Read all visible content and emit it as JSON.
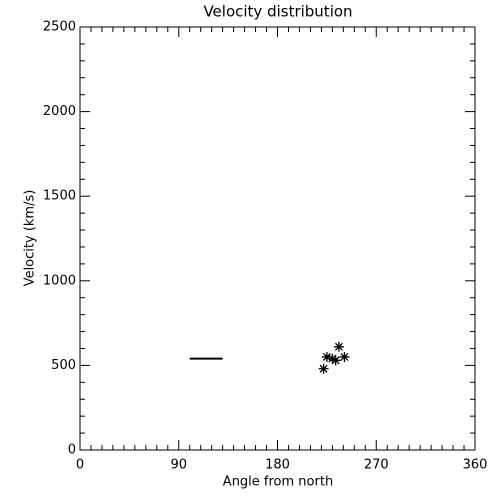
{
  "chart_data": {
    "type": "scatter",
    "title": "Velocity distribution",
    "x_label": "Angle from north",
    "y_label": "Velocity (km/s)",
    "xlim": [
      0,
      360
    ],
    "xticks": [
      0,
      90,
      180,
      270,
      360
    ],
    "ylim": [
      0,
      2500
    ],
    "yticks": [
      0,
      500,
      1000,
      1500,
      2000,
      2500
    ],
    "series": [
      {
        "style": "line",
        "color": "#000000",
        "x": [
          100,
          130
        ],
        "values": [
          540,
          540
        ]
      },
      {
        "style": "asterisk",
        "color": "#000000",
        "x": [
          222,
          225,
          230,
          233,
          236,
          241
        ],
        "values": [
          480,
          550,
          540,
          530,
          610,
          550
        ]
      }
    ]
  }
}
